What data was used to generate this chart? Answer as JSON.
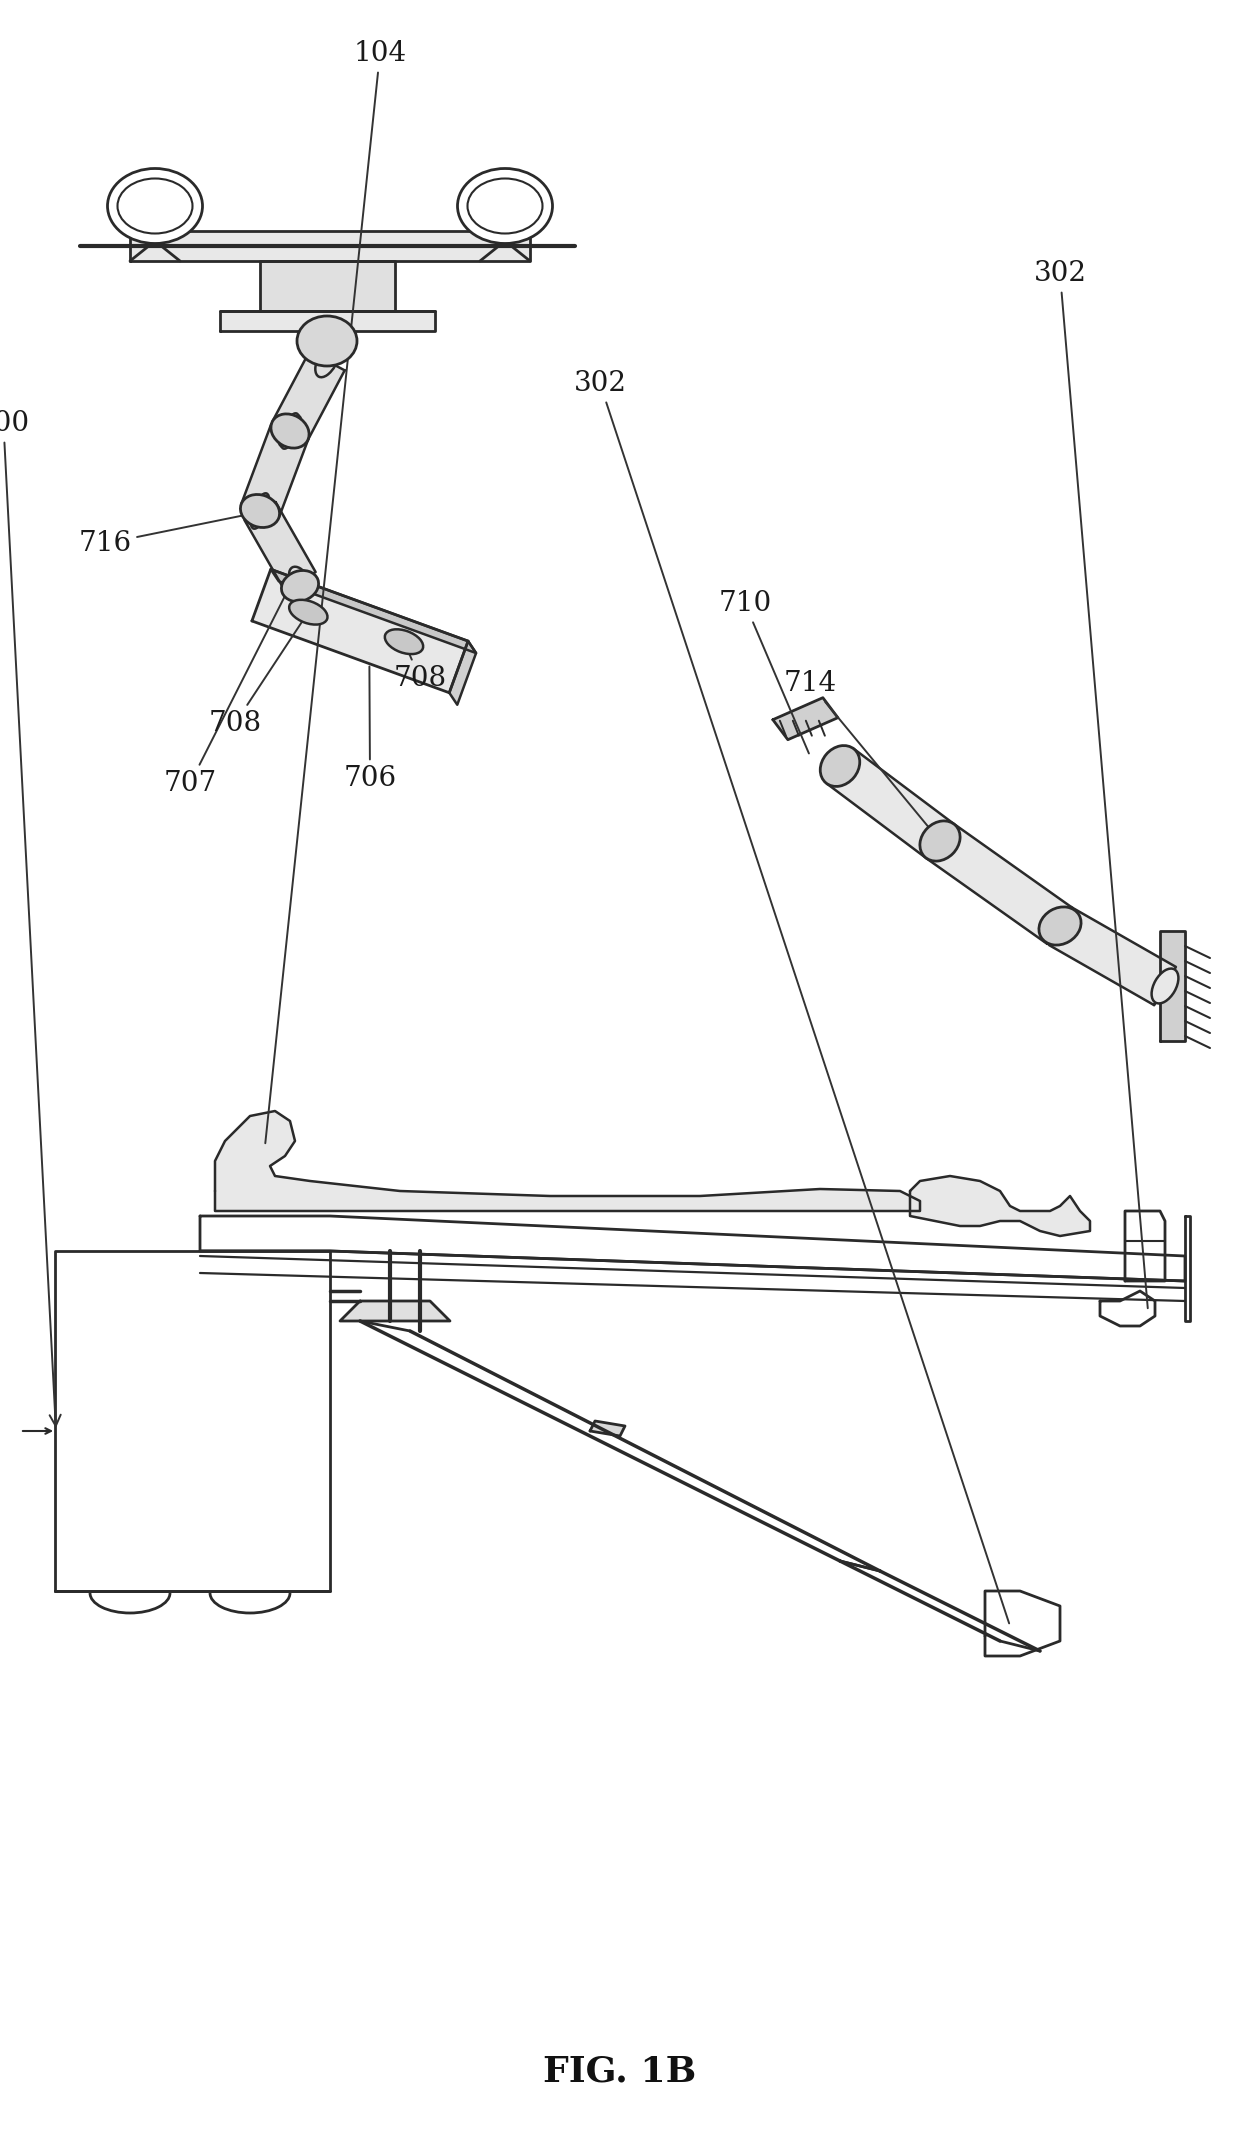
{
  "title": "FIG. 1B",
  "title_fontsize": 26,
  "title_fontweight": "bold",
  "background_color": "#ffffff",
  "line_color": "#2a2a2a",
  "line_width": 1.6,
  "fig_width": 12.4,
  "fig_height": 21.51,
  "dpi": 100
}
